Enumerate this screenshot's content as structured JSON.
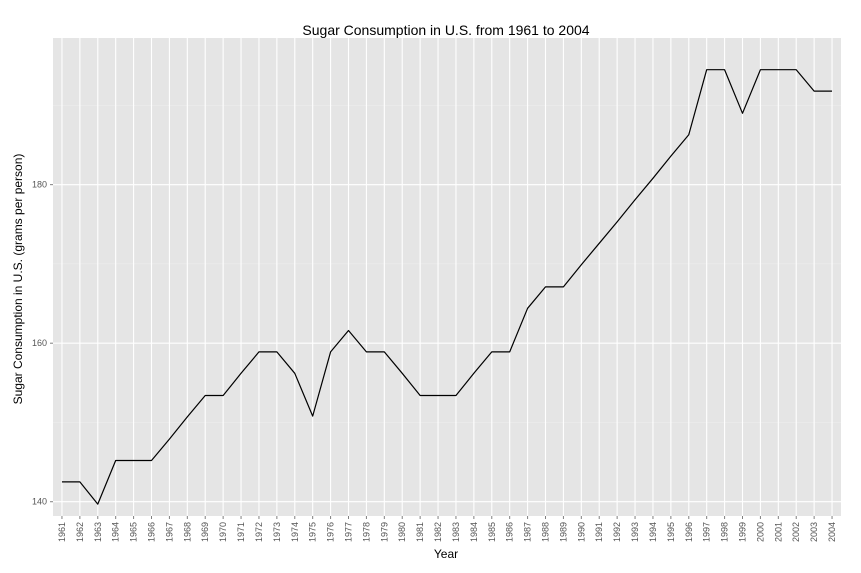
{
  "chart_data": {
    "type": "line",
    "title": "Sugar Consumption in U.S. from 1961 to 2004",
    "xlabel": "Year",
    "ylabel": "Sugar Consumption in U.S. (grams per person)",
    "ylim": [
      138.2,
      198.5
    ],
    "y_ticks": [
      140,
      160,
      180
    ],
    "x": [
      1961,
      1962,
      1963,
      1964,
      1965,
      1966,
      1967,
      1968,
      1969,
      1970,
      1971,
      1972,
      1973,
      1974,
      1975,
      1976,
      1977,
      1978,
      1979,
      1980,
      1981,
      1982,
      1983,
      1984,
      1985,
      1986,
      1987,
      1988,
      1989,
      1990,
      1991,
      1992,
      1993,
      1994,
      1995,
      1996,
      1997,
      1998,
      1999,
      2000,
      2001,
      2002,
      2003,
      2004
    ],
    "series": [
      {
        "values": [
          142.5,
          142.5,
          139.7,
          145.2,
          145.2,
          145.2,
          147.9,
          150.7,
          153.4,
          153.4,
          156.2,
          158.9,
          158.9,
          156.2,
          150.8,
          158.9,
          161.6,
          158.9,
          158.9,
          156.2,
          153.4,
          153.4,
          153.4,
          156.2,
          158.9,
          158.9,
          164.4,
          167.1,
          167.1,
          169.9,
          172.6,
          175.3,
          178.1,
          180.8,
          183.6,
          186.3,
          194.5,
          194.5,
          189.0,
          194.5,
          194.5,
          194.5,
          191.8,
          191.8
        ],
        "color": "#000000"
      }
    ],
    "grid": true,
    "background": "#e5e5e5",
    "legend": "none"
  }
}
